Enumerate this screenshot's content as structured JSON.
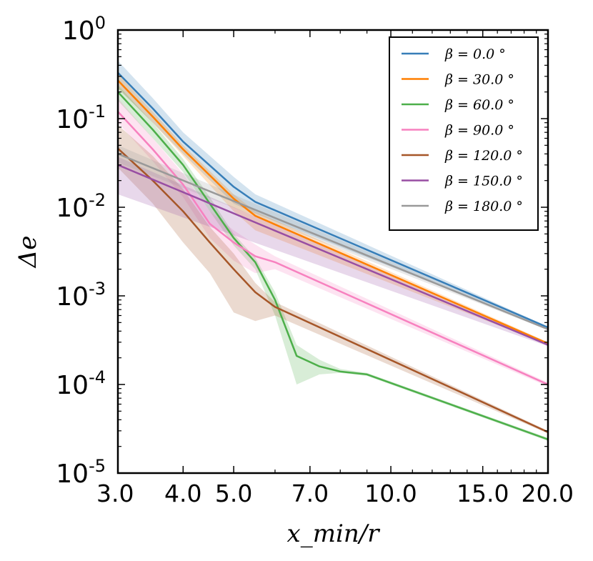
{
  "chart_data": {
    "type": "line",
    "xscale": "log",
    "yscale": "log",
    "xlabel": "x_min/r",
    "ylabel": "Δe",
    "xlim": [
      3.0,
      20.0
    ],
    "ylim": [
      1e-05,
      1.0
    ],
    "xticks": [
      3,
      4,
      5,
      7,
      10,
      15,
      20
    ],
    "xtick_labels": [
      "3.0",
      "4.0",
      "5.0",
      "7.0",
      "10.0",
      "15.0",
      "20.0"
    ],
    "yticks": [
      1e-05,
      0.0001,
      0.001,
      0.01,
      0.1,
      1.0
    ],
    "ytick_labels": [
      {
        "base": "10",
        "exp": "-5"
      },
      {
        "base": "10",
        "exp": "-4"
      },
      {
        "base": "10",
        "exp": "-3"
      },
      {
        "base": "10",
        "exp": "-2"
      },
      {
        "base": "10",
        "exp": "-1"
      },
      {
        "base": "10",
        "exp": "0"
      }
    ],
    "legend_position": "top-right",
    "series": [
      {
        "name": "β = 0.0 °",
        "color": "#377eb8",
        "x": [
          3.0,
          3.5,
          4.0,
          5.0,
          5.5,
          20.0
        ],
        "y": [
          0.33,
          0.13,
          0.055,
          0.017,
          0.0115,
          0.00044
        ],
        "band_upper": [
          0.45,
          0.17,
          0.07,
          0.022,
          0.014,
          0.00045
        ],
        "band_lower": [
          0.22,
          0.09,
          0.04,
          0.011,
          0.0085,
          0.00043
        ]
      },
      {
        "name": "β = 30.0 °",
        "color": "#ff7f00",
        "x": [
          3.0,
          3.5,
          4.0,
          5.0,
          5.5,
          20.0
        ],
        "y": [
          0.27,
          0.105,
          0.045,
          0.0125,
          0.008,
          0.00029
        ],
        "band_upper": [
          0.32,
          0.12,
          0.05,
          0.014,
          0.009,
          0.0003
        ],
        "band_lower": [
          0.22,
          0.09,
          0.038,
          0.009,
          0.0055,
          0.00028
        ]
      },
      {
        "name": "β = 60.0 °",
        "color": "#4daf4a",
        "x": [
          3.0,
          3.5,
          4.0,
          4.5,
          5.0,
          5.5,
          6.0,
          6.6,
          7.3,
          8.0,
          9.0,
          20.0
        ],
        "y": [
          0.2,
          0.075,
          0.03,
          0.011,
          0.0045,
          0.0024,
          0.0009,
          0.00021,
          0.00016,
          0.00014,
          0.00013,
          2.4e-05
        ],
        "band_upper": [
          0.24,
          0.09,
          0.035,
          0.013,
          0.005,
          0.0027,
          0.0011,
          0.00028,
          0.00019,
          0.00015,
          0.000135,
          2.5e-05
        ],
        "band_lower": [
          0.16,
          0.06,
          0.025,
          0.009,
          0.0037,
          0.002,
          0.0006,
          0.0001,
          0.00013,
          0.000135,
          0.000125,
          2.3e-05
        ]
      },
      {
        "name": "β = 90.0 °",
        "color": "#f781bf",
        "x": [
          3.0,
          3.5,
          4.0,
          4.5,
          5.0,
          5.5,
          6.0,
          20.0
        ],
        "y": [
          0.12,
          0.045,
          0.018,
          0.0065,
          0.004,
          0.0028,
          0.0024,
          0.0001
        ],
        "band_upper": [
          0.17,
          0.06,
          0.024,
          0.009,
          0.0055,
          0.0038,
          0.0028,
          0.000105
        ],
        "band_lower": [
          0.09,
          0.033,
          0.013,
          0.0045,
          0.0025,
          0.0018,
          0.002,
          9.5e-05
        ]
      },
      {
        "name": "β = 120.0 °",
        "color": "#a65628",
        "x": [
          3.0,
          3.5,
          4.0,
          4.5,
          5.0,
          5.5,
          6.0,
          20.0
        ],
        "y": [
          0.046,
          0.02,
          0.009,
          0.004,
          0.002,
          0.0011,
          0.00075,
          2.9e-05
        ],
        "band_upper": [
          0.085,
          0.038,
          0.016,
          0.006,
          0.003,
          0.0014,
          0.00085,
          3e-05
        ],
        "band_lower": [
          0.028,
          0.011,
          0.004,
          0.0018,
          0.00065,
          0.00052,
          0.0006,
          2.8e-05
        ]
      },
      {
        "name": "β = 150.0 °",
        "color": "#984ea3",
        "x": [
          3.0,
          20.0
        ],
        "y": [
          0.03,
          0.00028
        ],
        "band_upper": [
          0.037,
          0.00029
        ],
        "band_lower": [
          0.014,
          0.00027
        ]
      },
      {
        "name": "β = 180.0 °",
        "color": "#999999",
        "x": [
          3.0,
          20.0
        ],
        "y": [
          0.04,
          0.00042
        ],
        "band_upper": [
          0.05,
          0.00043
        ],
        "band_lower": [
          0.032,
          0.00041
        ]
      }
    ]
  }
}
